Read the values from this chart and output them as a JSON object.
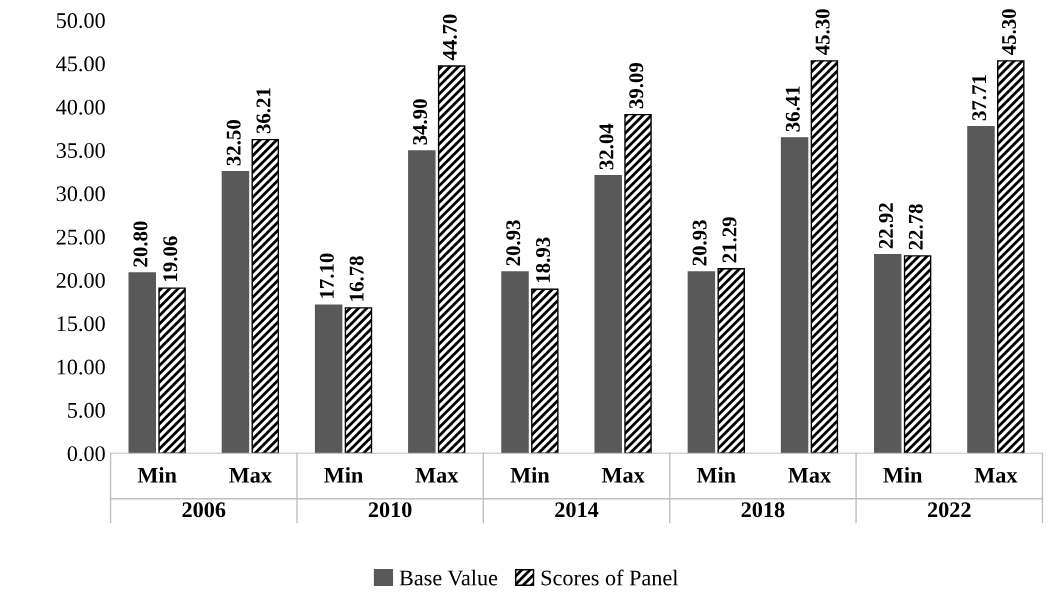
{
  "chart_data": {
    "type": "bar",
    "categories": [
      "Min",
      "Max",
      "Min",
      "Max",
      "Min",
      "Max",
      "Min",
      "Max",
      "Min",
      "Max"
    ],
    "series": [
      {
        "name": "Base Value",
        "color": "#595959",
        "values": [
          20.8,
          32.5,
          17.1,
          34.9,
          20.93,
          32.04,
          20.93,
          36.41,
          22.92,
          37.71
        ],
        "value_labels": [
          "20.80",
          "32.50",
          "17.10",
          "34.90",
          "20.93",
          "32.04",
          "20.93",
          "36.41",
          "22.92",
          "37.71"
        ]
      },
      {
        "name": "Scores of Panel",
        "color": "#000000",
        "values": [
          19.06,
          36.21,
          16.78,
          44.7,
          18.93,
          39.09,
          21.29,
          45.3,
          22.78,
          45.3
        ],
        "value_labels": [
          "19.06",
          "36.21",
          "16.78",
          "44.70",
          "18.93",
          "39.09",
          "21.29",
          "45.30",
          "22.78",
          "45.30"
        ]
      }
    ],
    "annotations": [
      "2006",
      "2010",
      "2014",
      "2018",
      "2022"
    ],
    "ylim": [
      0,
      50
    ],
    "yticks": [
      {
        "value": 0,
        "label": "0.00"
      },
      {
        "value": 5,
        "label": "5.00"
      },
      {
        "value": 10,
        "label": "10.00"
      },
      {
        "value": 15,
        "label": "15.00"
      },
      {
        "value": 20,
        "label": "20.00"
      },
      {
        "value": 25,
        "label": "25.00"
      },
      {
        "value": 30,
        "label": "30.00"
      },
      {
        "value": 35,
        "label": "35.00"
      },
      {
        "value": 40,
        "label": "40.00"
      },
      {
        "value": 45,
        "label": "45.00"
      },
      {
        "value": 50,
        "label": "50.00"
      }
    ],
    "grid": false,
    "legend": "bottom"
  }
}
